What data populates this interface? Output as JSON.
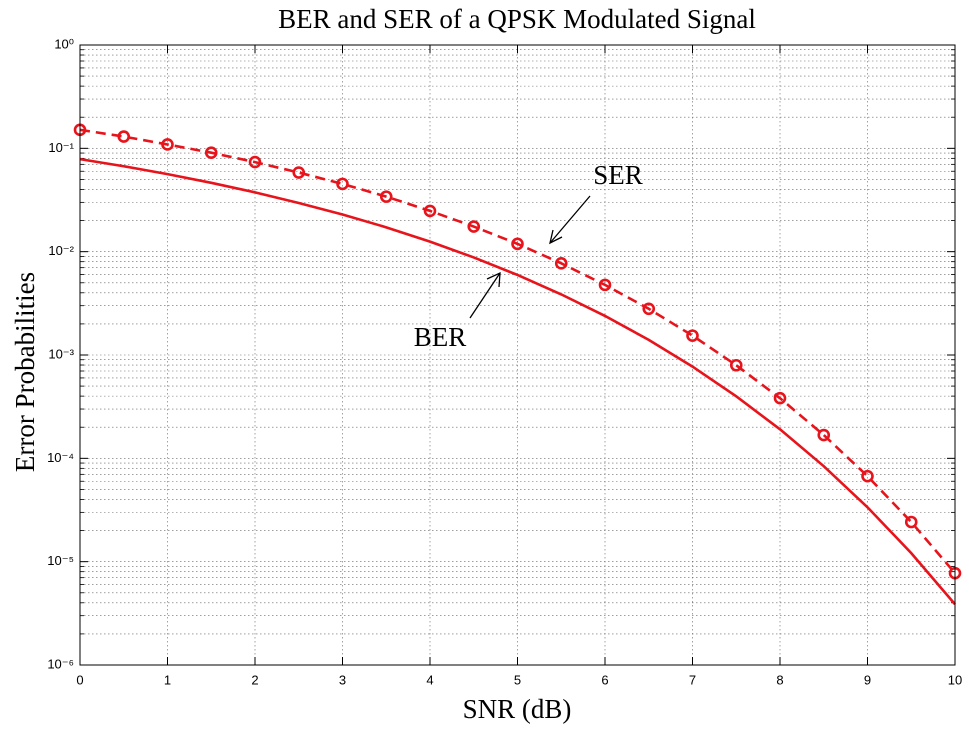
{
  "chart_data": {
    "type": "line",
    "title": "BER and SER of a QPSK Modulated Signal",
    "xlabel": "SNR (dB)",
    "ylabel": "Error Probabilities",
    "x": [
      0,
      0.5,
      1,
      1.5,
      2,
      2.5,
      3,
      3.5,
      4,
      4.5,
      5,
      5.5,
      6,
      6.5,
      7,
      7.5,
      8,
      8.5,
      9,
      9.5,
      10
    ],
    "series": [
      {
        "color": "#e8141c",
        "linestyle": "solid",
        "values": [
          0.0786,
          0.0671,
          0.0563,
          0.0464,
          0.0375,
          0.0296,
          0.0229,
          0.0172,
          0.0125,
          0.00879,
          0.00595,
          0.00386,
          0.00239,
          0.0014,
          0.000772,
          0.000398,
          0.000191,
          8.4e-05,
          3.36e-05,
          1.21e-05,
          3.87e-06
        ]
      },
      {
        "color": "#e8141c",
        "linestyle": "dashed",
        "marker": "o",
        "values": [
          0.151,
          0.13,
          0.109,
          0.0907,
          0.0736,
          0.0583,
          0.0453,
          0.0341,
          0.0248,
          0.0175,
          0.0119,
          0.00771,
          0.00477,
          0.0028,
          0.00154,
          0.000796,
          0.000382,
          0.000168,
          6.72e-05,
          2.42e-05,
          7.74e-06
        ]
      }
    ],
    "annotations": [
      {
        "text": "SER"
      },
      {
        "text": "BER"
      }
    ],
    "xlim": [
      0,
      10
    ],
    "xticks": [
      0,
      1,
      2,
      3,
      4,
      5,
      6,
      7,
      8,
      9,
      10
    ],
    "ylim": [
      1e-06,
      1
    ],
    "yscale": "log",
    "yticks": [
      {
        "value": 1e-06,
        "label": "10⁻⁶"
      },
      {
        "value": 1e-05,
        "label": "10⁻⁵"
      },
      {
        "value": 0.0001,
        "label": "10⁻⁴"
      },
      {
        "value": 0.001,
        "label": "10⁻³"
      },
      {
        "value": 0.01,
        "label": "10⁻²"
      },
      {
        "value": 0.1,
        "label": "10⁻¹"
      },
      {
        "value": 1,
        "label": "10⁰"
      }
    ],
    "grid": true
  }
}
